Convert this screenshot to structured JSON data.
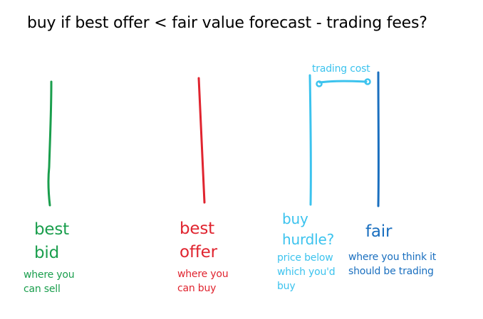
{
  "title": "buy if best offer < fair value forecast - trading fees?",
  "colors": {
    "green": "#1a9e4d",
    "red": "#e0242f",
    "light": "#3cc3ee",
    "blue": "#1a6fbf"
  },
  "labels": {
    "best_bid": {
      "line1": "best",
      "line2": "bid",
      "note1": "where you",
      "note2": "can sell"
    },
    "best_offer": {
      "line1": "best",
      "line2": "offer",
      "note1": "where you",
      "note2": "can buy"
    },
    "buy_hurdle": {
      "line1": "buy",
      "line2": "hurdle?",
      "note1": "price below",
      "note2": "which you'd",
      "note3": "buy"
    },
    "fair": {
      "line1": "fair",
      "note1": "where you think it",
      "note2": "should be trading"
    },
    "trading_cost": "trading cost"
  }
}
